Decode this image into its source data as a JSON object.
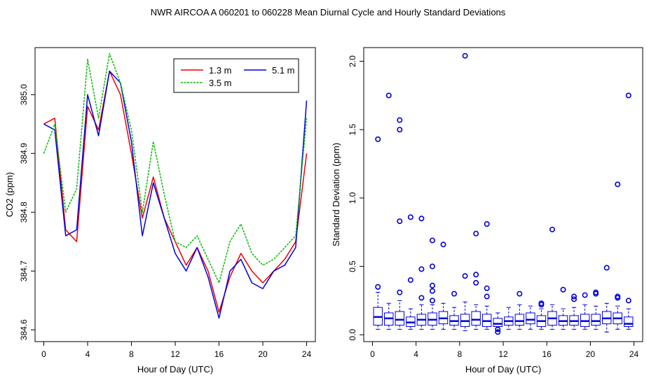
{
  "title": "NWR   AIRCOA A   060201 to 060228   Mean Diurnal Cycle and Hourly Standard Deviations",
  "chart_data": [
    {
      "type": "line",
      "xlabel": "Hour of Day (UTC)",
      "ylabel": "CO2 (ppm)",
      "xlim": [
        -0.8,
        24.8
      ],
      "ylim": [
        384.58,
        385.08
      ],
      "xticks": [
        0,
        4,
        8,
        12,
        16,
        20,
        24
      ],
      "xtick_labels": [
        "0",
        "4",
        "8",
        "12",
        "16",
        "20",
        "24"
      ],
      "yticks": [
        384.6,
        384.7,
        384.8,
        384.9,
        385.0
      ],
      "ytick_labels": [
        "384.6",
        "384.7",
        "384.8",
        "384.9",
        "385.0"
      ],
      "legend_position": "top-right",
      "x_hours": [
        0,
        1,
        2,
        3,
        4,
        5,
        6,
        7,
        8,
        9,
        10,
        11,
        12,
        13,
        14,
        15,
        16,
        17,
        18,
        19,
        20,
        21,
        22,
        23,
        24
      ],
      "series": [
        {
          "name": "1.3 m",
          "color": "#ee0000",
          "values": [
            384.95,
            384.96,
            384.77,
            384.75,
            384.98,
            384.94,
            385.04,
            385.0,
            384.9,
            384.79,
            384.86,
            384.79,
            384.75,
            384.71,
            384.74,
            384.7,
            384.63,
            384.69,
            384.73,
            384.7,
            384.68,
            384.7,
            384.72,
            384.75,
            384.9
          ]
        },
        {
          "name": "5.1 m",
          "color": "#0000dd",
          "values": [
            384.95,
            384.94,
            384.76,
            384.77,
            385.0,
            384.93,
            385.04,
            385.02,
            384.92,
            384.76,
            384.85,
            384.79,
            384.73,
            384.7,
            384.74,
            384.69,
            384.62,
            384.7,
            384.72,
            384.68,
            384.67,
            384.7,
            384.71,
            384.74,
            384.99
          ]
        },
        {
          "name": "3.5 m",
          "color": "#00bb00",
          "values": [
            384.9,
            384.95,
            384.8,
            384.84,
            385.06,
            384.96,
            385.07,
            385.02,
            384.94,
            384.8,
            384.92,
            384.83,
            384.75,
            384.74,
            384.76,
            384.72,
            384.68,
            384.75,
            384.78,
            384.73,
            384.71,
            384.72,
            384.74,
            384.76,
            384.96
          ]
        }
      ],
      "legend_order": [
        "1.3 m",
        "5.1 m",
        "3.5 m"
      ]
    },
    {
      "type": "box",
      "xlabel": "Hour of Day (UTC)",
      "ylabel": "Standard Deviation (ppm)",
      "xlim": [
        -0.8,
        24.8
      ],
      "ylim": [
        -0.05,
        2.1
      ],
      "xticks": [
        0,
        4,
        8,
        12,
        16,
        20,
        24
      ],
      "xtick_labels": [
        "0",
        "4",
        "8",
        "12",
        "16",
        "20",
        "24"
      ],
      "yticks": [
        0.0,
        0.5,
        1.0,
        1.5,
        2.0
      ],
      "ytick_labels": [
        "0.0",
        "0.5",
        "1.0",
        "1.5",
        "2.0"
      ],
      "color": "#0000dd",
      "box_color": "#0000dd",
      "boxes": [
        {
          "x": 0.5,
          "q1": 0.07,
          "med": 0.13,
          "q3": 0.2,
          "wlo": 0.04,
          "whi": 0.31,
          "outliers": [
            0.35,
            1.43
          ]
        },
        {
          "x": 1.5,
          "q1": 0.07,
          "med": 0.12,
          "q3": 0.16,
          "wlo": 0.04,
          "whi": 0.23,
          "outliers": [
            1.75
          ]
        },
        {
          "x": 2.5,
          "q1": 0.07,
          "med": 0.11,
          "q3": 0.17,
          "wlo": 0.04,
          "whi": 0.25,
          "outliers": [
            0.31,
            0.83,
            1.5,
            1.57
          ]
        },
        {
          "x": 3.5,
          "q1": 0.06,
          "med": 0.09,
          "q3": 0.13,
          "wlo": 0.04,
          "whi": 0.19,
          "outliers": [
            0.4,
            0.86
          ]
        },
        {
          "x": 4.5,
          "q1": 0.07,
          "med": 0.11,
          "q3": 0.15,
          "wlo": 0.04,
          "whi": 0.22,
          "outliers": [
            0.27,
            0.48,
            0.85
          ]
        },
        {
          "x": 5.5,
          "q1": 0.07,
          "med": 0.11,
          "q3": 0.16,
          "wlo": 0.04,
          "whi": 0.22,
          "outliers": [
            0.25,
            0.32,
            0.36,
            0.5,
            0.69
          ]
        },
        {
          "x": 6.5,
          "q1": 0.08,
          "med": 0.12,
          "q3": 0.17,
          "wlo": 0.04,
          "whi": 0.23,
          "outliers": [
            0.66
          ]
        },
        {
          "x": 7.5,
          "q1": 0.07,
          "med": 0.1,
          "q3": 0.14,
          "wlo": 0.04,
          "whi": 0.2,
          "outliers": [
            0.3
          ]
        },
        {
          "x": 8.5,
          "q1": 0.06,
          "med": 0.1,
          "q3": 0.15,
          "wlo": 0.03,
          "whi": 0.24,
          "outliers": [
            0.43,
            2.04
          ]
        },
        {
          "x": 9.5,
          "q1": 0.07,
          "med": 0.11,
          "q3": 0.17,
          "wlo": 0.04,
          "whi": 0.22,
          "outliers": [
            0.38,
            0.44,
            0.74
          ]
        },
        {
          "x": 10.5,
          "q1": 0.06,
          "med": 0.1,
          "q3": 0.15,
          "wlo": 0.04,
          "whi": 0.21,
          "outliers": [
            0.28,
            0.34,
            0.81
          ]
        },
        {
          "x": 11.5,
          "q1": 0.06,
          "med": 0.08,
          "q3": 0.12,
          "wlo": 0.03,
          "whi": 0.16,
          "outliers": [
            0.02,
            0.04
          ]
        },
        {
          "x": 12.5,
          "q1": 0.07,
          "med": 0.1,
          "q3": 0.13,
          "wlo": 0.04,
          "whi": 0.2,
          "outliers": []
        },
        {
          "x": 13.5,
          "q1": 0.07,
          "med": 0.1,
          "q3": 0.15,
          "wlo": 0.04,
          "whi": 0.22,
          "outliers": [
            0.3
          ]
        },
        {
          "x": 14.5,
          "q1": 0.08,
          "med": 0.11,
          "q3": 0.16,
          "wlo": 0.04,
          "whi": 0.21,
          "outliers": []
        },
        {
          "x": 15.5,
          "q1": 0.06,
          "med": 0.1,
          "q3": 0.14,
          "wlo": 0.04,
          "whi": 0.19,
          "outliers": [
            0.22,
            0.23
          ]
        },
        {
          "x": 16.5,
          "q1": 0.07,
          "med": 0.12,
          "q3": 0.17,
          "wlo": 0.04,
          "whi": 0.22,
          "outliers": [
            0.77
          ]
        },
        {
          "x": 17.5,
          "q1": 0.07,
          "med": 0.1,
          "q3": 0.14,
          "wlo": 0.04,
          "whi": 0.19,
          "outliers": [
            0.33
          ]
        },
        {
          "x": 18.5,
          "q1": 0.07,
          "med": 0.1,
          "q3": 0.14,
          "wlo": 0.04,
          "whi": 0.2,
          "outliers": [
            0.26,
            0.28
          ]
        },
        {
          "x": 19.5,
          "q1": 0.06,
          "med": 0.1,
          "q3": 0.15,
          "wlo": 0.04,
          "whi": 0.22,
          "outliers": [
            0.29
          ]
        },
        {
          "x": 20.5,
          "q1": 0.07,
          "med": 0.1,
          "q3": 0.15,
          "wlo": 0.04,
          "whi": 0.21,
          "outliers": [
            0.3,
            0.31
          ]
        },
        {
          "x": 21.5,
          "q1": 0.08,
          "med": 0.12,
          "q3": 0.17,
          "wlo": 0.02,
          "whi": 0.23,
          "outliers": [
            0.49
          ]
        },
        {
          "x": 22.5,
          "q1": 0.08,
          "med": 0.12,
          "q3": 0.16,
          "wlo": 0.04,
          "whi": 0.21,
          "outliers": [
            0.27,
            0.28,
            1.1
          ]
        },
        {
          "x": 23.5,
          "q1": 0.06,
          "med": 0.08,
          "q3": 0.13,
          "wlo": 0.04,
          "whi": 0.19,
          "outliers": [
            0.25,
            1.75
          ]
        }
      ]
    }
  ]
}
